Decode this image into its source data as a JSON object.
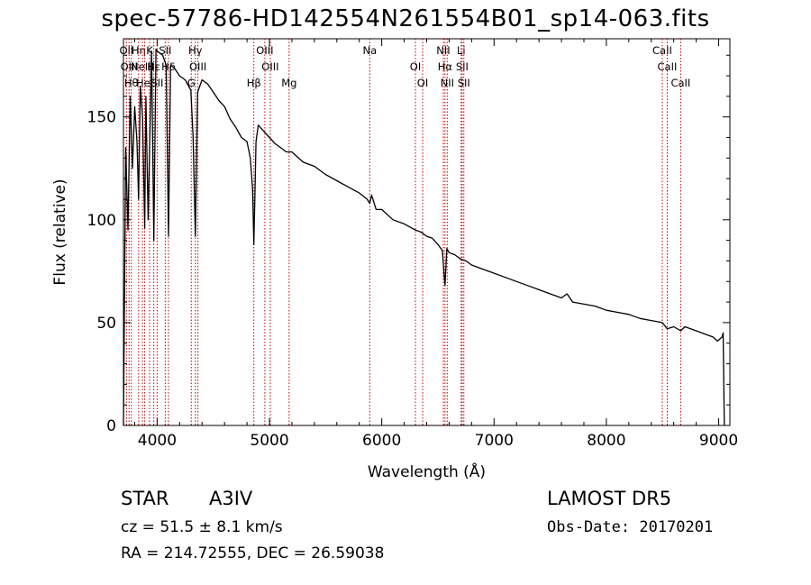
{
  "title": "spec-57786-HD142554N261554B01_sp14-063.fits",
  "info": {
    "class_label": "STAR",
    "subclass": "A3IV",
    "survey": "LAMOST DR5",
    "cz": "cz = 51.5 ± 8.1 km/s",
    "obs_date": "Obs-Date: 20170201",
    "radec": "RA = 214.72555, DEC =  26.59038"
  },
  "chart_data": {
    "type": "line",
    "title": "spec-57786-HD142554N261554B01_sp14-063.fits",
    "xlabel": "Wavelength (Å)",
    "ylabel": "Flux (relative)",
    "xlim": [
      3700,
      9100
    ],
    "ylim": [
      0,
      188
    ],
    "xticks": [
      4000,
      5000,
      6000,
      7000,
      8000,
      9000
    ],
    "yticks": [
      0,
      50,
      100,
      150
    ],
    "grid": false,
    "series": [
      {
        "color": "#000000",
        "x": [
          3700,
          3720,
          3740,
          3760,
          3780,
          3800,
          3820,
          3835,
          3850,
          3870,
          3889,
          3900,
          3920,
          3950,
          3970,
          3990,
          4000,
          4050,
          4080,
          4101,
          4120,
          4150,
          4200,
          4250,
          4300,
          4320,
          4340,
          4360,
          4400,
          4450,
          4500,
          4550,
          4600,
          4650,
          4700,
          4750,
          4800,
          4830,
          4850,
          4861,
          4870,
          4880,
          4900,
          4950,
          5000,
          5050,
          5100,
          5150,
          5200,
          5300,
          5400,
          5500,
          5600,
          5700,
          5800,
          5870,
          5893,
          5910,
          5950,
          6000,
          6100,
          6200,
          6300,
          6350,
          6400,
          6450,
          6500,
          6540,
          6563,
          6580,
          6600,
          6650,
          6700,
          6750,
          6800,
          6900,
          7000,
          7100,
          7200,
          7300,
          7400,
          7500,
          7600,
          7650,
          7700,
          7800,
          7900,
          8000,
          8100,
          8200,
          8300,
          8400,
          8498,
          8542,
          8600,
          8662,
          8700,
          8800,
          8900,
          8950,
          8990,
          9030,
          9040,
          9050
        ],
        "y": [
          0,
          135,
          95,
          160,
          125,
          155,
          138,
          110,
          165,
          150,
          96,
          160,
          100,
          182,
          90,
          183,
          182,
          180,
          175,
          92,
          175,
          174,
          170,
          168,
          163,
          140,
          92,
          162,
          168,
          166,
          162,
          158,
          155,
          149,
          145,
          140,
          138,
          130,
          115,
          88,
          110,
          138,
          146,
          143,
          140,
          137,
          135,
          133,
          133,
          128,
          126,
          122,
          119,
          116,
          113,
          110,
          108,
          112,
          105,
          105,
          100,
          98,
          95,
          94,
          92,
          91,
          88,
          85,
          68,
          86,
          84,
          83,
          81,
          80,
          78,
          76,
          74,
          72,
          70,
          68,
          66,
          64,
          62,
          64,
          60,
          59,
          58,
          56,
          55,
          54,
          52,
          51,
          50,
          47,
          48,
          46,
          48,
          46,
          44,
          43,
          41,
          43,
          45,
          0
        ]
      }
    ],
    "lines": [
      {
        "x": 3727,
        "label": "OII"
      },
      {
        "x": 3750,
        "label": "OIII"
      },
      {
        "x": 3770,
        "label": "Hθ"
      },
      {
        "x": 3835,
        "label": "Hη"
      },
      {
        "x": 3869,
        "label": "NeIII"
      },
      {
        "x": 3889,
        "label": "HeI"
      },
      {
        "x": 3933,
        "label": "K"
      },
      {
        "x": 3970,
        "label": "Hε"
      },
      {
        "x": 4000,
        "label": "SII"
      },
      {
        "x": 4072,
        "label": "SII"
      },
      {
        "x": 4101,
        "label": "Hδ"
      },
      {
        "x": 4304,
        "label": "G"
      },
      {
        "x": 4340,
        "label": "Hγ"
      },
      {
        "x": 4363,
        "label": "OIII"
      },
      {
        "x": 4861,
        "label": "Hβ"
      },
      {
        "x": 4959,
        "label": "OIII"
      },
      {
        "x": 5007,
        "label": "OIII"
      },
      {
        "x": 5175,
        "label": "Mg"
      },
      {
        "x": 5893,
        "label": "Na"
      },
      {
        "x": 6300,
        "label": "OI"
      },
      {
        "x": 6364,
        "label": "OI"
      },
      {
        "x": 6548,
        "label": "NII"
      },
      {
        "x": 6563,
        "label": "Hα"
      },
      {
        "x": 6583,
        "label": "NII"
      },
      {
        "x": 6707,
        "label": "Li"
      },
      {
        "x": 6716,
        "label": "SII"
      },
      {
        "x": 6731,
        "label": "SII"
      },
      {
        "x": 8498,
        "label": "CaII"
      },
      {
        "x": 8542,
        "label": "CaII"
      },
      {
        "x": 8662,
        "label": "CaII"
      }
    ]
  }
}
